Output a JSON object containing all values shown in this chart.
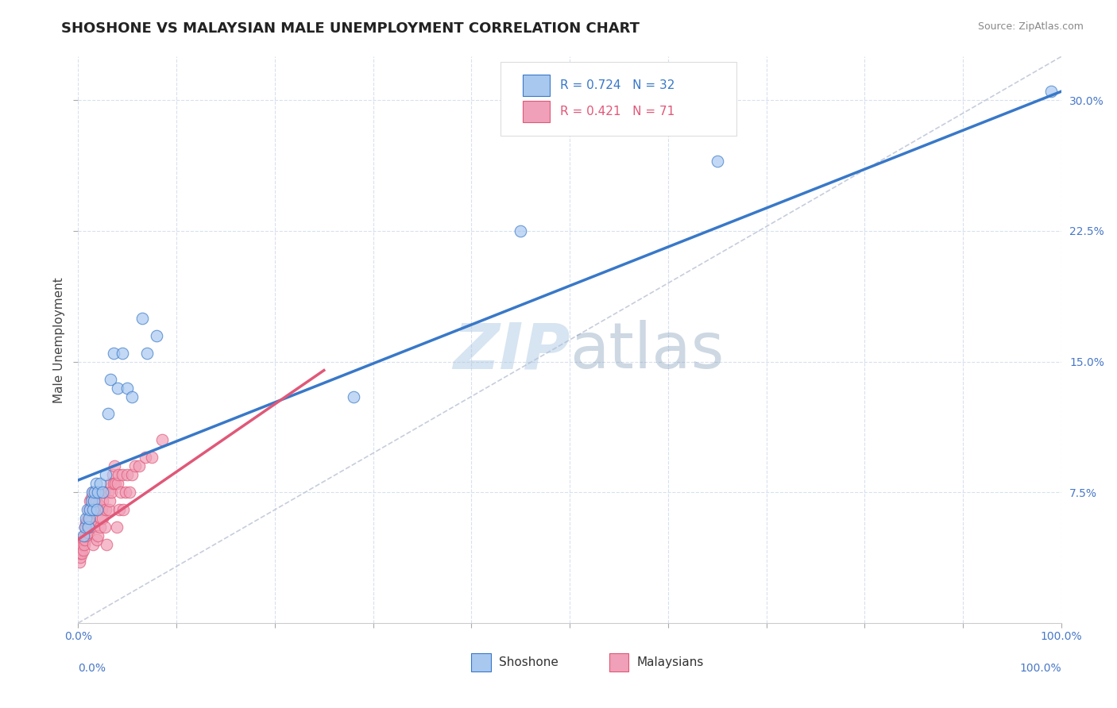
{
  "title": "SHOSHONE VS MALAYSIAN MALE UNEMPLOYMENT CORRELATION CHART",
  "source_text": "Source: ZipAtlas.com",
  "ylabel": "Male Unemployment",
  "xmin": 0.0,
  "xmax": 1.0,
  "ymin": 0.0,
  "ymax": 0.325,
  "xtick_labels_sparse": [
    "0.0%",
    "",
    "",
    "",
    "",
    "",
    "",
    "",
    "",
    "",
    "100.0%"
  ],
  "xtick_positions_sparse": [
    0.0,
    0.1,
    0.2,
    0.3,
    0.4,
    0.5,
    0.6,
    0.7,
    0.8,
    0.9,
    1.0
  ],
  "ytick_labels": [
    "7.5%",
    "15.0%",
    "22.5%",
    "30.0%"
  ],
  "ytick_positions": [
    0.075,
    0.15,
    0.225,
    0.3
  ],
  "bottom_legend_x_label": "0.0%",
  "bottom_legend_center_label": "Shoshone",
  "bottom_legend_right_label": "100.0%",
  "shoshone_color": "#A8C8F0",
  "malaysian_color": "#F0A0B8",
  "blue_line_color": "#3878C8",
  "pink_line_color": "#E05878",
  "diag_line_color": "#C0C8D8",
  "watermark_color": "#C8D8EE",
  "background_color": "#FFFFFF",
  "grid_color": "#D8E0EE",
  "title_color": "#222222",
  "tick_color": "#4878C8",
  "source_color": "#888888",
  "ylabel_color": "#444444",
  "shoshone_x": [
    0.005,
    0.007,
    0.008,
    0.009,
    0.01,
    0.011,
    0.012,
    0.013,
    0.014,
    0.015,
    0.016,
    0.017,
    0.018,
    0.019,
    0.02,
    0.022,
    0.025,
    0.028,
    0.03,
    0.033,
    0.036,
    0.04,
    0.045,
    0.05,
    0.055,
    0.065,
    0.07,
    0.08,
    0.28,
    0.45,
    0.65,
    0.99
  ],
  "shoshone_y": [
    0.05,
    0.055,
    0.06,
    0.065,
    0.055,
    0.06,
    0.065,
    0.07,
    0.075,
    0.065,
    0.07,
    0.075,
    0.08,
    0.065,
    0.075,
    0.08,
    0.075,
    0.085,
    0.12,
    0.14,
    0.155,
    0.135,
    0.155,
    0.135,
    0.13,
    0.175,
    0.155,
    0.165,
    0.13,
    0.225,
    0.265,
    0.305
  ],
  "malaysian_x": [
    0.001,
    0.002,
    0.002,
    0.003,
    0.003,
    0.004,
    0.004,
    0.005,
    0.005,
    0.006,
    0.006,
    0.007,
    0.007,
    0.008,
    0.008,
    0.009,
    0.009,
    0.01,
    0.01,
    0.011,
    0.011,
    0.012,
    0.012,
    0.013,
    0.013,
    0.014,
    0.015,
    0.015,
    0.016,
    0.016,
    0.017,
    0.018,
    0.018,
    0.019,
    0.02,
    0.02,
    0.021,
    0.022,
    0.023,
    0.024,
    0.025,
    0.025,
    0.026,
    0.027,
    0.028,
    0.029,
    0.03,
    0.031,
    0.032,
    0.033,
    0.034,
    0.035,
    0.036,
    0.037,
    0.038,
    0.039,
    0.04,
    0.041,
    0.042,
    0.043,
    0.045,
    0.046,
    0.048,
    0.05,
    0.052,
    0.055,
    0.058,
    0.062,
    0.068,
    0.075,
    0.085
  ],
  "malaysian_y": [
    0.035,
    0.038,
    0.04,
    0.042,
    0.045,
    0.04,
    0.045,
    0.042,
    0.048,
    0.045,
    0.05,
    0.048,
    0.055,
    0.05,
    0.058,
    0.055,
    0.06,
    0.052,
    0.058,
    0.055,
    0.065,
    0.058,
    0.07,
    0.065,
    0.072,
    0.068,
    0.045,
    0.075,
    0.065,
    0.07,
    0.055,
    0.065,
    0.07,
    0.048,
    0.05,
    0.075,
    0.068,
    0.055,
    0.06,
    0.065,
    0.06,
    0.07,
    0.075,
    0.055,
    0.065,
    0.045,
    0.075,
    0.065,
    0.07,
    0.08,
    0.075,
    0.085,
    0.08,
    0.09,
    0.08,
    0.055,
    0.08,
    0.085,
    0.065,
    0.075,
    0.085,
    0.065,
    0.075,
    0.085,
    0.075,
    0.085,
    0.09,
    0.09,
    0.095,
    0.095,
    0.105
  ],
  "blue_trendline_x0": 0.0,
  "blue_trendline_y0": 0.082,
  "blue_trendline_x1": 1.0,
  "blue_trendline_y1": 0.305,
  "pink_trendline_x0": 0.0,
  "pink_trendline_y0": 0.048,
  "pink_trendline_x1": 0.25,
  "pink_trendline_y1": 0.145,
  "title_fontsize": 13,
  "axis_label_fontsize": 11,
  "tick_fontsize": 10,
  "legend_fontsize": 11,
  "source_fontsize": 9
}
